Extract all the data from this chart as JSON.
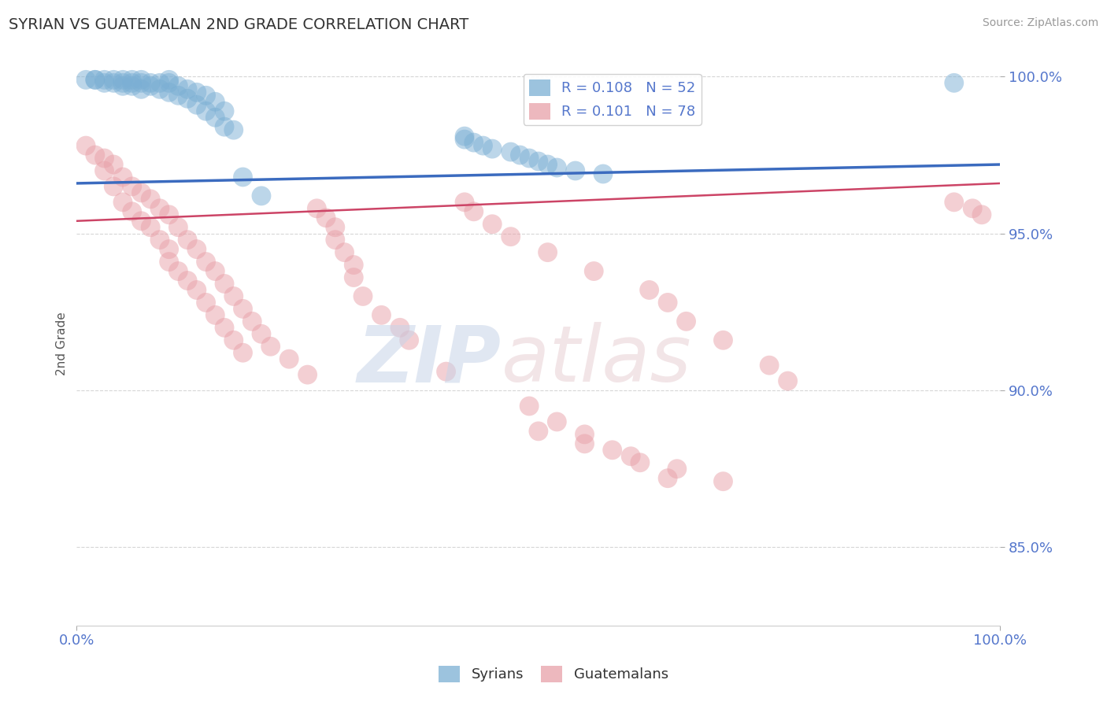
{
  "title": "SYRIAN VS GUATEMALAN 2ND GRADE CORRELATION CHART",
  "source": "Source: ZipAtlas.com",
  "ylabel": "2nd Grade",
  "xlim": [
    0.0,
    1.0
  ],
  "ylim": [
    0.825,
    1.005
  ],
  "yticks": [
    0.85,
    0.9,
    0.95,
    1.0
  ],
  "ytick_labels": [
    "85.0%",
    "90.0%",
    "95.0%",
    "100.0%"
  ],
  "blue_color": "#7bafd4",
  "pink_color": "#e8a0a8",
  "blue_line_color": "#3b6bbf",
  "pink_line_color": "#cc4466",
  "axis_color": "#5577cc",
  "grid_color": "#bbbbbb",
  "title_color": "#333333",
  "background_color": "#ffffff",
  "blue_line_y0": 0.966,
  "blue_line_y1": 0.972,
  "pink_line_y0": 0.954,
  "pink_line_y1": 0.966,
  "blue_points_x": [
    0.01,
    0.02,
    0.02,
    0.03,
    0.03,
    0.04,
    0.04,
    0.05,
    0.05,
    0.05,
    0.06,
    0.06,
    0.06,
    0.07,
    0.07,
    0.07,
    0.08,
    0.08,
    0.09,
    0.09,
    0.1,
    0.1,
    0.1,
    0.11,
    0.11,
    0.12,
    0.12,
    0.13,
    0.13,
    0.14,
    0.14,
    0.15,
    0.15,
    0.16,
    0.16,
    0.17,
    0.18,
    0.2,
    0.42,
    0.42,
    0.43,
    0.44,
    0.45,
    0.47,
    0.48,
    0.49,
    0.5,
    0.51,
    0.52,
    0.54,
    0.57,
    0.95
  ],
  "blue_points_y": [
    0.999,
    0.999,
    0.999,
    0.999,
    0.998,
    0.999,
    0.998,
    0.999,
    0.998,
    0.997,
    0.999,
    0.998,
    0.997,
    0.999,
    0.998,
    0.996,
    0.998,
    0.997,
    0.998,
    0.996,
    0.999,
    0.998,
    0.995,
    0.997,
    0.994,
    0.996,
    0.993,
    0.995,
    0.991,
    0.994,
    0.989,
    0.992,
    0.987,
    0.989,
    0.984,
    0.983,
    0.968,
    0.962,
    0.981,
    0.98,
    0.979,
    0.978,
    0.977,
    0.976,
    0.975,
    0.974,
    0.973,
    0.972,
    0.971,
    0.97,
    0.969,
    0.998
  ],
  "pink_points_x": [
    0.01,
    0.02,
    0.03,
    0.03,
    0.04,
    0.04,
    0.05,
    0.05,
    0.06,
    0.06,
    0.07,
    0.07,
    0.08,
    0.08,
    0.09,
    0.09,
    0.1,
    0.1,
    0.1,
    0.11,
    0.11,
    0.12,
    0.12,
    0.13,
    0.13,
    0.14,
    0.14,
    0.15,
    0.15,
    0.16,
    0.16,
    0.17,
    0.17,
    0.18,
    0.18,
    0.19,
    0.2,
    0.21,
    0.23,
    0.25,
    0.26,
    0.27,
    0.28,
    0.28,
    0.29,
    0.3,
    0.3,
    0.31,
    0.33,
    0.35,
    0.36,
    0.4,
    0.42,
    0.43,
    0.45,
    0.47,
    0.51,
    0.56,
    0.62,
    0.64,
    0.66,
    0.7,
    0.75,
    0.77,
    0.49,
    0.52,
    0.55,
    0.58,
    0.61,
    0.64,
    0.95,
    0.97,
    0.98,
    0.5,
    0.55,
    0.6,
    0.65,
    0.7
  ],
  "pink_points_y": [
    0.978,
    0.975,
    0.974,
    0.97,
    0.972,
    0.965,
    0.968,
    0.96,
    0.965,
    0.957,
    0.963,
    0.954,
    0.961,
    0.952,
    0.958,
    0.948,
    0.956,
    0.945,
    0.941,
    0.952,
    0.938,
    0.948,
    0.935,
    0.945,
    0.932,
    0.941,
    0.928,
    0.938,
    0.924,
    0.934,
    0.92,
    0.93,
    0.916,
    0.926,
    0.912,
    0.922,
    0.918,
    0.914,
    0.91,
    0.905,
    0.958,
    0.955,
    0.952,
    0.948,
    0.944,
    0.94,
    0.936,
    0.93,
    0.924,
    0.92,
    0.916,
    0.906,
    0.96,
    0.957,
    0.953,
    0.949,
    0.944,
    0.938,
    0.932,
    0.928,
    0.922,
    0.916,
    0.908,
    0.903,
    0.895,
    0.89,
    0.886,
    0.881,
    0.877,
    0.872,
    0.96,
    0.958,
    0.956,
    0.887,
    0.883,
    0.879,
    0.875,
    0.871
  ]
}
